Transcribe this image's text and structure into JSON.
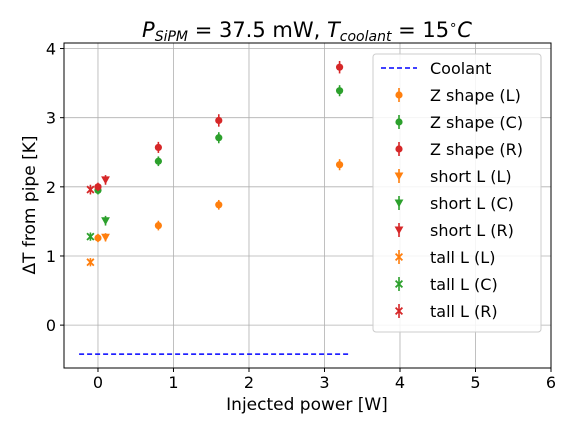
{
  "chart_data": {
    "type": "scatter",
    "title_parts": {
      "p": "P",
      "p_sub": "SiPM",
      "mid": " = 37.5 mW, ",
      "t": "T",
      "t_sub": "coolant",
      "end": " = 15",
      "deg": "∘",
      "unit": "C"
    },
    "xlabel": "Injected power [W]",
    "ylabel": "ΔT from pipe [K]",
    "xlim": [
      -0.45,
      6.0
    ],
    "ylim": [
      -0.62,
      4.08
    ],
    "xticks": [
      0,
      1,
      2,
      3,
      4,
      5,
      6
    ],
    "xtick_labels": [
      "0",
      "1",
      "2",
      "3",
      "4",
      "5",
      "6"
    ],
    "yticks": [
      0,
      1,
      2,
      3,
      4
    ],
    "ytick_labels": [
      "0",
      "1",
      "2",
      "3",
      "4"
    ],
    "grid": true,
    "legend_position": "top-right",
    "colors": {
      "orange": "#ff7f0e",
      "green": "#2ca02c",
      "red": "#d62728",
      "blue": "#0000ff"
    },
    "coolant": {
      "name": "Coolant",
      "color": "#0000ff",
      "x": [
        -0.25,
        3.35
      ],
      "y": -0.42
    },
    "series": [
      {
        "name": "Z shape (L)",
        "marker": "circle",
        "color": "#ff7f0e",
        "points": [
          {
            "x": 0.0,
            "y": 1.26,
            "err": 0.06
          },
          {
            "x": 0.8,
            "y": 1.44,
            "err": 0.07
          },
          {
            "x": 1.6,
            "y": 1.74,
            "err": 0.07
          },
          {
            "x": 3.2,
            "y": 2.32,
            "err": 0.08
          }
        ]
      },
      {
        "name": "Z shape (C)",
        "marker": "circle",
        "color": "#2ca02c",
        "points": [
          {
            "x": 0.0,
            "y": 1.95,
            "err": 0.06
          },
          {
            "x": 0.8,
            "y": 2.37,
            "err": 0.07
          },
          {
            "x": 1.6,
            "y": 2.71,
            "err": 0.08
          },
          {
            "x": 3.2,
            "y": 3.39,
            "err": 0.08
          }
        ]
      },
      {
        "name": "Z shape (R)",
        "marker": "circle",
        "color": "#d62728",
        "points": [
          {
            "x": 0.0,
            "y": 2.0,
            "err": 0.06
          },
          {
            "x": 0.8,
            "y": 2.57,
            "err": 0.08
          },
          {
            "x": 1.6,
            "y": 2.96,
            "err": 0.09
          },
          {
            "x": 3.2,
            "y": 3.73,
            "err": 0.09
          }
        ]
      },
      {
        "name": "short L (L)",
        "marker": "triangle-down",
        "color": "#ff7f0e",
        "points": [
          {
            "x": 0.1,
            "y": 1.27,
            "err": 0.06
          }
        ]
      },
      {
        "name": "short L (C)",
        "marker": "triangle-down",
        "color": "#2ca02c",
        "points": [
          {
            "x": 0.1,
            "y": 1.51,
            "err": 0.07
          }
        ]
      },
      {
        "name": "short L (R)",
        "marker": "triangle-down",
        "color": "#d62728",
        "points": [
          {
            "x": 0.1,
            "y": 2.1,
            "err": 0.07
          }
        ]
      },
      {
        "name": "tall L (L)",
        "marker": "x",
        "color": "#ff7f0e",
        "points": [
          {
            "x": -0.1,
            "y": 0.91,
            "err": 0.06
          }
        ]
      },
      {
        "name": "tall L (C)",
        "marker": "x",
        "color": "#2ca02c",
        "points": [
          {
            "x": -0.1,
            "y": 1.28,
            "err": 0.06
          }
        ]
      },
      {
        "name": "tall L (R)",
        "marker": "x",
        "color": "#d62728",
        "points": [
          {
            "x": -0.1,
            "y": 1.96,
            "err": 0.07
          }
        ]
      }
    ]
  }
}
